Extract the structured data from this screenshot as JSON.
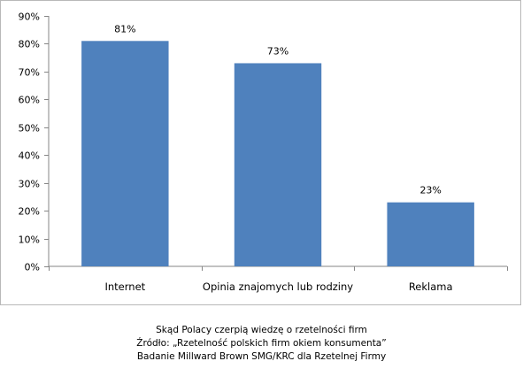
{
  "chart_data": {
    "type": "bar",
    "categories": [
      "Internet",
      "Opinia znajomych lub rodziny",
      "Reklama"
    ],
    "values": [
      81,
      73,
      23
    ],
    "data_labels": [
      "81%",
      "73%",
      "23%"
    ],
    "ylim": [
      0,
      90
    ],
    "yticks": [
      0,
      10,
      20,
      30,
      40,
      50,
      60,
      70,
      80,
      90
    ],
    "ytick_labels": [
      "0%",
      "10%",
      "20%",
      "30%",
      "40%",
      "50%",
      "60%",
      "70%",
      "80%",
      "90%"
    ],
    "xlabel": "",
    "ylabel": "",
    "grid": false,
    "bar_color": "#4f81bd"
  },
  "caption": {
    "line1": "Skąd Polacy czerpią wiedzę o rzetelności firm",
    "line2": "Źródło: „Rzetelność polskich firm okiem konsumenta”",
    "line3": "Badanie Millward Brown SMG/KRC dla Rzetelnej Firmy"
  }
}
